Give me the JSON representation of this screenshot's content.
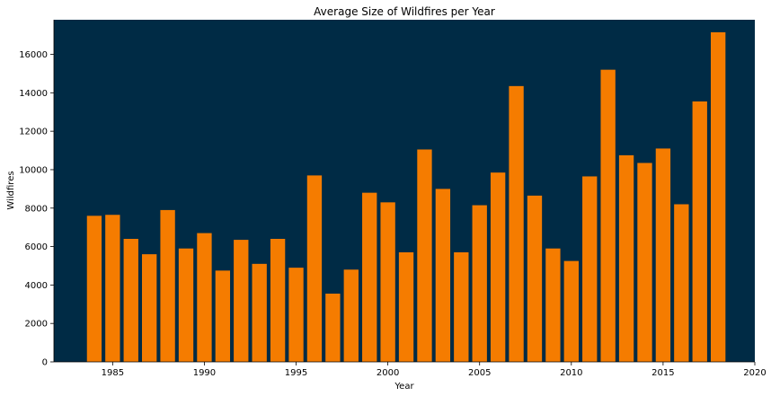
{
  "chart_data": {
    "type": "bar",
    "title": "Average Size of Wildfires per Year",
    "xlabel": "Year",
    "ylabel": "Wildfires",
    "x": [
      1984,
      1985,
      1986,
      1987,
      1988,
      1989,
      1990,
      1991,
      1992,
      1993,
      1994,
      1995,
      1996,
      1997,
      1998,
      1999,
      2000,
      2001,
      2002,
      2003,
      2004,
      2005,
      2006,
      2007,
      2008,
      2009,
      2010,
      2011,
      2012,
      2013,
      2014,
      2015,
      2016,
      2017,
      2018
    ],
    "values": [
      7600,
      7650,
      6400,
      5600,
      7900,
      5900,
      6700,
      4750,
      6350,
      5100,
      6400,
      4900,
      9700,
      3550,
      4800,
      8800,
      8300,
      5700,
      11050,
      9000,
      5700,
      8150,
      9850,
      14350,
      8650,
      5900,
      5250,
      9650,
      15200,
      10750,
      10350,
      11100,
      8200,
      13550,
      17150
    ],
    "xlim": [
      1981.8,
      2020
    ],
    "ylim": [
      0,
      17800
    ],
    "xticks": [
      1985,
      1990,
      1995,
      2000,
      2005,
      2010,
      2015,
      2020
    ],
    "yticks": [
      0,
      2000,
      4000,
      6000,
      8000,
      10000,
      12000,
      14000,
      16000
    ],
    "bar_color": "#f57c00",
    "plot_background": "#002b45",
    "grid": false,
    "legend": false
  }
}
